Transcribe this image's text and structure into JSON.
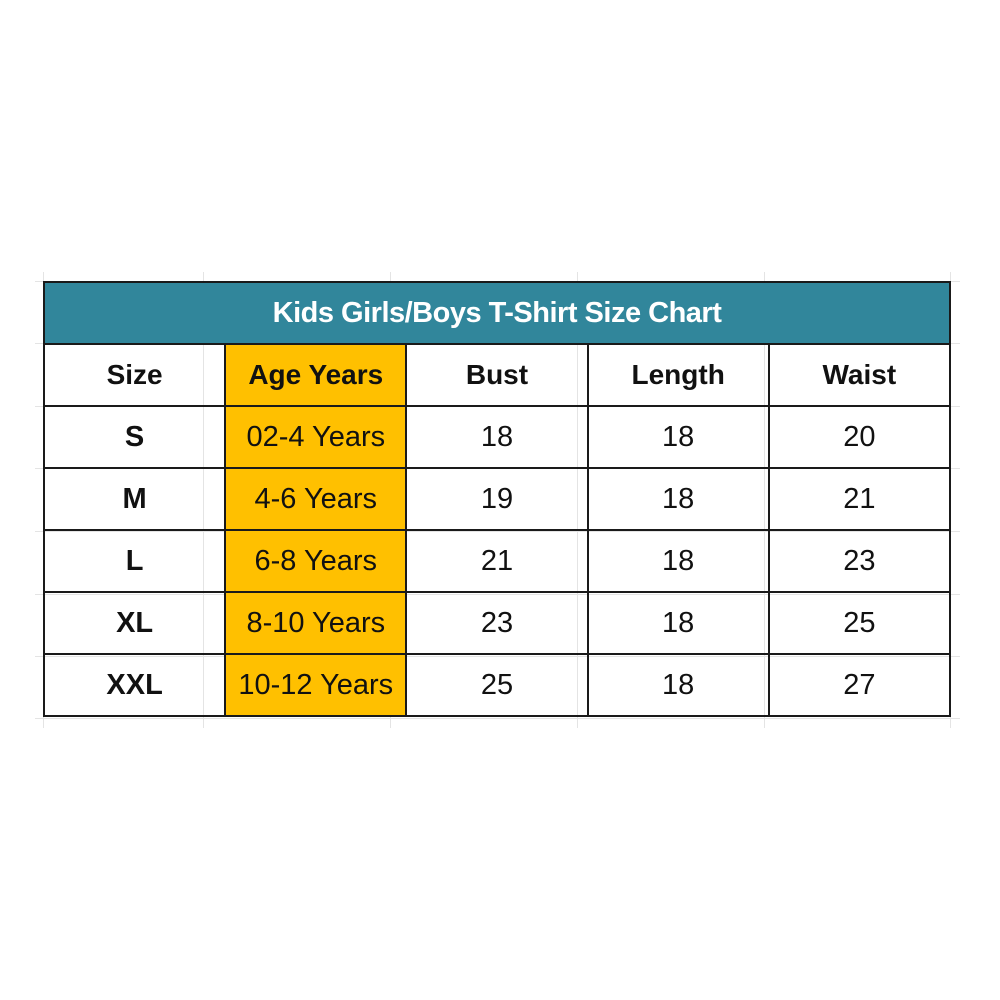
{
  "title": "Kids Girls/Boys T-Shirt Size Chart",
  "colors": {
    "title_bg": "#31869b",
    "age_column_bg": "#ffc000"
  },
  "headers": [
    "Size",
    "Age Years",
    "Bust",
    "Length",
    "Waist"
  ],
  "rows": [
    [
      "S",
      "02-4 Years",
      "18",
      "18",
      "20"
    ],
    [
      "M",
      "4-6 Years",
      "19",
      "18",
      "21"
    ],
    [
      "L",
      "6-8 Years",
      "21",
      "18",
      "23"
    ],
    [
      "XL",
      "8-10 Years",
      "23",
      "18",
      "25"
    ],
    [
      "XXL",
      "10-12 Years",
      "25",
      "18",
      "27"
    ]
  ]
}
